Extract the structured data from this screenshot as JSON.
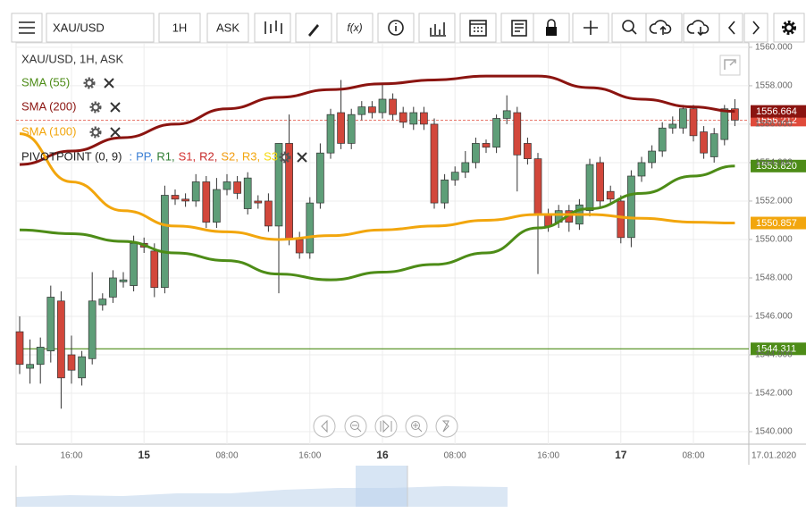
{
  "toolbar": {
    "symbol": "XAU/USD",
    "timeframe": "1H",
    "price_type": "ASK",
    "function_label": "f(x)"
  },
  "chart_data": {
    "type": "candlestick",
    "title": "XAU/USD, 1H, ASK",
    "categories": [
      null,
      null,
      null,
      null,
      null,
      "16:00",
      null,
      null,
      null,
      null,
      null,
      null,
      "15",
      null,
      null,
      null,
      null,
      null,
      null,
      null,
      "08:00",
      null,
      null,
      null,
      null,
      null,
      null,
      null,
      "16:00",
      null,
      null,
      null,
      null,
      null,
      null,
      "16",
      null,
      null,
      null,
      null,
      null,
      null,
      "08:00",
      null,
      null,
      null,
      null,
      null,
      null,
      null,
      null,
      "16:00",
      null,
      null,
      null,
      null,
      null,
      null,
      "17",
      null,
      null,
      null,
      null,
      null,
      null,
      "08:00",
      null,
      null,
      null,
      null
    ],
    "date_label": "17.01.2020",
    "open": [
      1545.2,
      1543.3,
      1543.5,
      1544.2,
      1546.8,
      1544.0,
      1542.8,
      1543.8,
      1546.6,
      1547.0,
      1547.8,
      1547.6,
      1549.8,
      1549.4,
      1547.5,
      1552.3,
      1552.1,
      1552.0,
      1553.0,
      1550.9,
      1552.6,
      1553.0,
      1551.6,
      1552.0,
      1552.0,
      1550.7,
      1555.0,
      1550.0,
      1549.3,
      1551.9,
      1554.5,
      1556.6,
      1555.0,
      1556.5,
      1556.9,
      1556.6,
      1557.3,
      1556.6,
      1556.0,
      1556.6,
      1556.0,
      1551.9,
      1553.1,
      1553.5,
      1554.0,
      1555.0,
      1554.8,
      1556.3,
      1556.6,
      1555.0,
      1554.2,
      1551.3,
      1550.9,
      1551.5,
      1550.8,
      1551.5,
      1554.0,
      1552.5,
      1552.0,
      1550.1,
      1553.3,
      1554.0,
      1554.6,
      1555.8,
      1555.8,
      1556.8,
      1555.6,
      1554.3,
      1555.2,
      1556.8
    ],
    "high": [
      1546.0,
      1544.8,
      1544.9,
      1547.6,
      1547.3,
      1545.0,
      1544.2,
      1548.3,
      1547.2,
      1548.4,
      1548.3,
      1550.2,
      1550.1,
      1549.8,
      1552.8,
      1552.6,
      1552.4,
      1553.4,
      1553.3,
      1553.2,
      1553.4,
      1553.3,
      1553.5,
      1552.3,
      1552.4,
      1555.0,
      1556.5,
      1550.4,
      1552.2,
      1555.0,
      1556.8,
      1558.3,
      1556.8,
      1557.2,
      1557.2,
      1558.1,
      1557.6,
      1556.9,
      1556.9,
      1556.9,
      1556.3,
      1553.4,
      1553.8,
      1554.6,
      1555.3,
      1555.2,
      1556.5,
      1557.5,
      1556.9,
      1555.3,
      1554.5,
      1551.6,
      1551.8,
      1551.8,
      1552.1,
      1554.2,
      1554.3,
      1552.8,
      1552.3,
      1553.6,
      1554.3,
      1554.9,
      1556.1,
      1556.4,
      1557.0,
      1557.0,
      1555.9,
      1555.8,
      1557.0,
      1557.3
    ],
    "low": [
      1543.0,
      1542.5,
      1542.5,
      1543.6,
      1541.2,
      1542.5,
      1542.4,
      1543.5,
      1546.3,
      1546.7,
      1547.5,
      1547.3,
      1549.3,
      1547.0,
      1547.2,
      1551.8,
      1551.7,
      1551.7,
      1550.6,
      1550.6,
      1552.3,
      1552.1,
      1551.3,
      1551.6,
      1550.4,
      1547.2,
      1549.7,
      1549.0,
      1549.0,
      1551.6,
      1554.2,
      1554.7,
      1554.7,
      1556.2,
      1556.3,
      1556.3,
      1556.2,
      1555.8,
      1555.7,
      1555.7,
      1551.6,
      1551.6,
      1552.8,
      1553.2,
      1553.7,
      1554.5,
      1554.5,
      1556.0,
      1552.5,
      1553.9,
      1548.2,
      1550.4,
      1550.6,
      1550.4,
      1550.5,
      1551.2,
      1551.7,
      1551.8,
      1549.8,
      1549.6,
      1553.0,
      1553.7,
      1554.3,
      1555.5,
      1555.5,
      1555.1,
      1554.2,
      1554.0,
      1554.9,
      1555.9
    ],
    "close": [
      1543.5,
      1543.5,
      1544.4,
      1547.0,
      1542.8,
      1543.2,
      1543.9,
      1546.8,
      1546.9,
      1548.0,
      1547.9,
      1549.8,
      1549.6,
      1547.5,
      1552.3,
      1552.1,
      1552.0,
      1553.0,
      1550.9,
      1552.6,
      1553.0,
      1552.4,
      1553.2,
      1551.9,
      1550.7,
      1555.0,
      1550.0,
      1549.3,
      1551.9,
      1554.5,
      1556.5,
      1555.0,
      1556.5,
      1556.9,
      1556.6,
      1557.3,
      1556.5,
      1556.1,
      1556.6,
      1556.0,
      1551.9,
      1553.1,
      1553.5,
      1554.0,
      1555.0,
      1554.8,
      1556.3,
      1556.7,
      1554.4,
      1554.2,
      1551.3,
      1550.7,
      1551.5,
      1550.9,
      1551.8,
      1553.9,
      1552.0,
      1552.1,
      1550.1,
      1553.3,
      1554.0,
      1554.6,
      1555.8,
      1556.0,
      1556.8,
      1555.4,
      1554.5,
      1555.5,
      1556.8,
      1556.212
    ],
    "up_color": "#5e9e78",
    "down_color": "#d2473b",
    "current_price": {
      "value": 1556.212,
      "label": "1556.212",
      "color": "#e04a3a"
    },
    "series": [
      {
        "name": "SMA (55)",
        "color": "#4d8c17",
        "x": [
          0,
          5,
          10,
          15,
          20,
          25,
          30,
          35,
          40,
          45,
          50,
          55,
          60,
          65,
          69
        ],
        "values": [
          1550.5,
          1550.3,
          1549.9,
          1549.3,
          1548.9,
          1548.2,
          1547.9,
          1548.3,
          1548.7,
          1549.3,
          1550.6,
          1551.6,
          1552.4,
          1553.3,
          1553.82
        ],
        "price_label": "1553.820"
      },
      {
        "name": "SMA (200)",
        "color": "#8b1410",
        "x": [
          0,
          5,
          10,
          15,
          20,
          25,
          30,
          35,
          40,
          45,
          50,
          55,
          60,
          65,
          69
        ],
        "values": [
          1553.9,
          1554.6,
          1555.3,
          1556.0,
          1556.8,
          1557.4,
          1557.8,
          1558.1,
          1558.3,
          1558.5,
          1558.5,
          1557.9,
          1557.3,
          1556.9,
          1556.664
        ],
        "price_label": "1556.664"
      },
      {
        "name": "SMA (100)",
        "color": "#f2a60d",
        "x": [
          0,
          5,
          10,
          15,
          20,
          25,
          30,
          35,
          40,
          45,
          50,
          55,
          60,
          65,
          69
        ],
        "values": [
          1555.5,
          1553.0,
          1551.5,
          1550.7,
          1550.4,
          1550.0,
          1550.2,
          1550.5,
          1550.7,
          1551.0,
          1551.3,
          1551.3,
          1551.1,
          1550.9,
          1550.857
        ],
        "price_label": "1550.857"
      }
    ],
    "pivot": {
      "name": "PIVOTPOINT (0, 9)",
      "prefix": ":",
      "color": "#4d8c17",
      "value": 1544.311,
      "label": "1544.311",
      "levels": [
        {
          "name": "PP,",
          "color": "#3a7fd5"
        },
        {
          "name": "R1,",
          "color": "#2e7d32"
        },
        {
          "name": "S1,",
          "color": "#d32f2f"
        },
        {
          "name": "R2,",
          "color": "#c62828"
        },
        {
          "name": "S2,",
          "color": "#f29b0d"
        },
        {
          "name": "R3,",
          "color": "#f2a60d"
        },
        {
          "name": "S3",
          "color": "#f5d90a"
        }
      ]
    },
    "ylim": [
      1539.35,
      1560.6
    ],
    "yticks": [
      {
        "value": 1540,
        "label": "1540.000"
      },
      {
        "value": 1542,
        "label": "1542.000"
      },
      {
        "value": 1544,
        "label": "1544.000"
      },
      {
        "value": 1546,
        "label": "1546.000"
      },
      {
        "value": 1548,
        "label": "1548.000"
      },
      {
        "value": 1550,
        "label": "1550.000"
      },
      {
        "value": 1552,
        "label": "1552.000"
      },
      {
        "value": 1554,
        "label": "1554.000"
      },
      {
        "value": 1556,
        "label": "1556.000"
      },
      {
        "value": 1558,
        "label": "1558.000"
      },
      {
        "value": 1560,
        "label": "1560.000"
      }
    ],
    "grid": true
  }
}
